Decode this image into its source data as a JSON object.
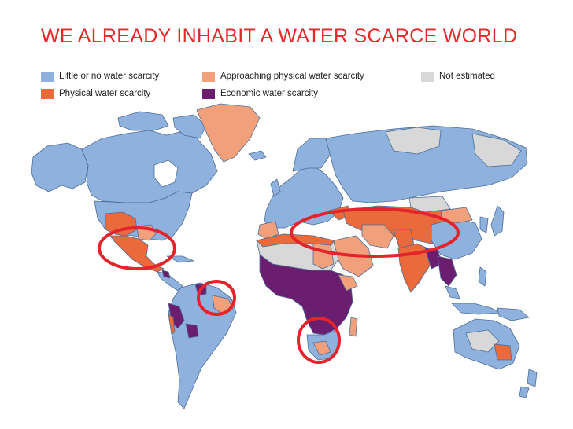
{
  "slide": {
    "title": "WE ALREADY INHABIT A WATER SCARCE WORLD"
  },
  "legend": [
    {
      "label": "Little or no water scarcity",
      "color": "#8fb1dd"
    },
    {
      "label": "Approaching physical water scarcity",
      "color": "#f2a07c"
    },
    {
      "label": "Not estimated",
      "color": "#d8d8d8"
    },
    {
      "label": "Physical water scarcity",
      "color": "#ea6a3c"
    },
    {
      "label": "Economic water scarcity",
      "color": "#6b1e6f"
    }
  ],
  "colors": {
    "little": "#8fb1dd",
    "approaching": "#f2a07c",
    "physical": "#ea6a3c",
    "economic": "#6b1e6f",
    "not_estimated": "#d8d8d8",
    "highlight": "#e4232a",
    "border": "#4d6d96"
  },
  "highlights": [
    {
      "region": "Mexico and southwestern United States"
    },
    {
      "region": "North Africa, Middle East and Central Asia"
    },
    {
      "region": "Northeastern Brazil"
    },
    {
      "region": "Southern Africa"
    }
  ]
}
